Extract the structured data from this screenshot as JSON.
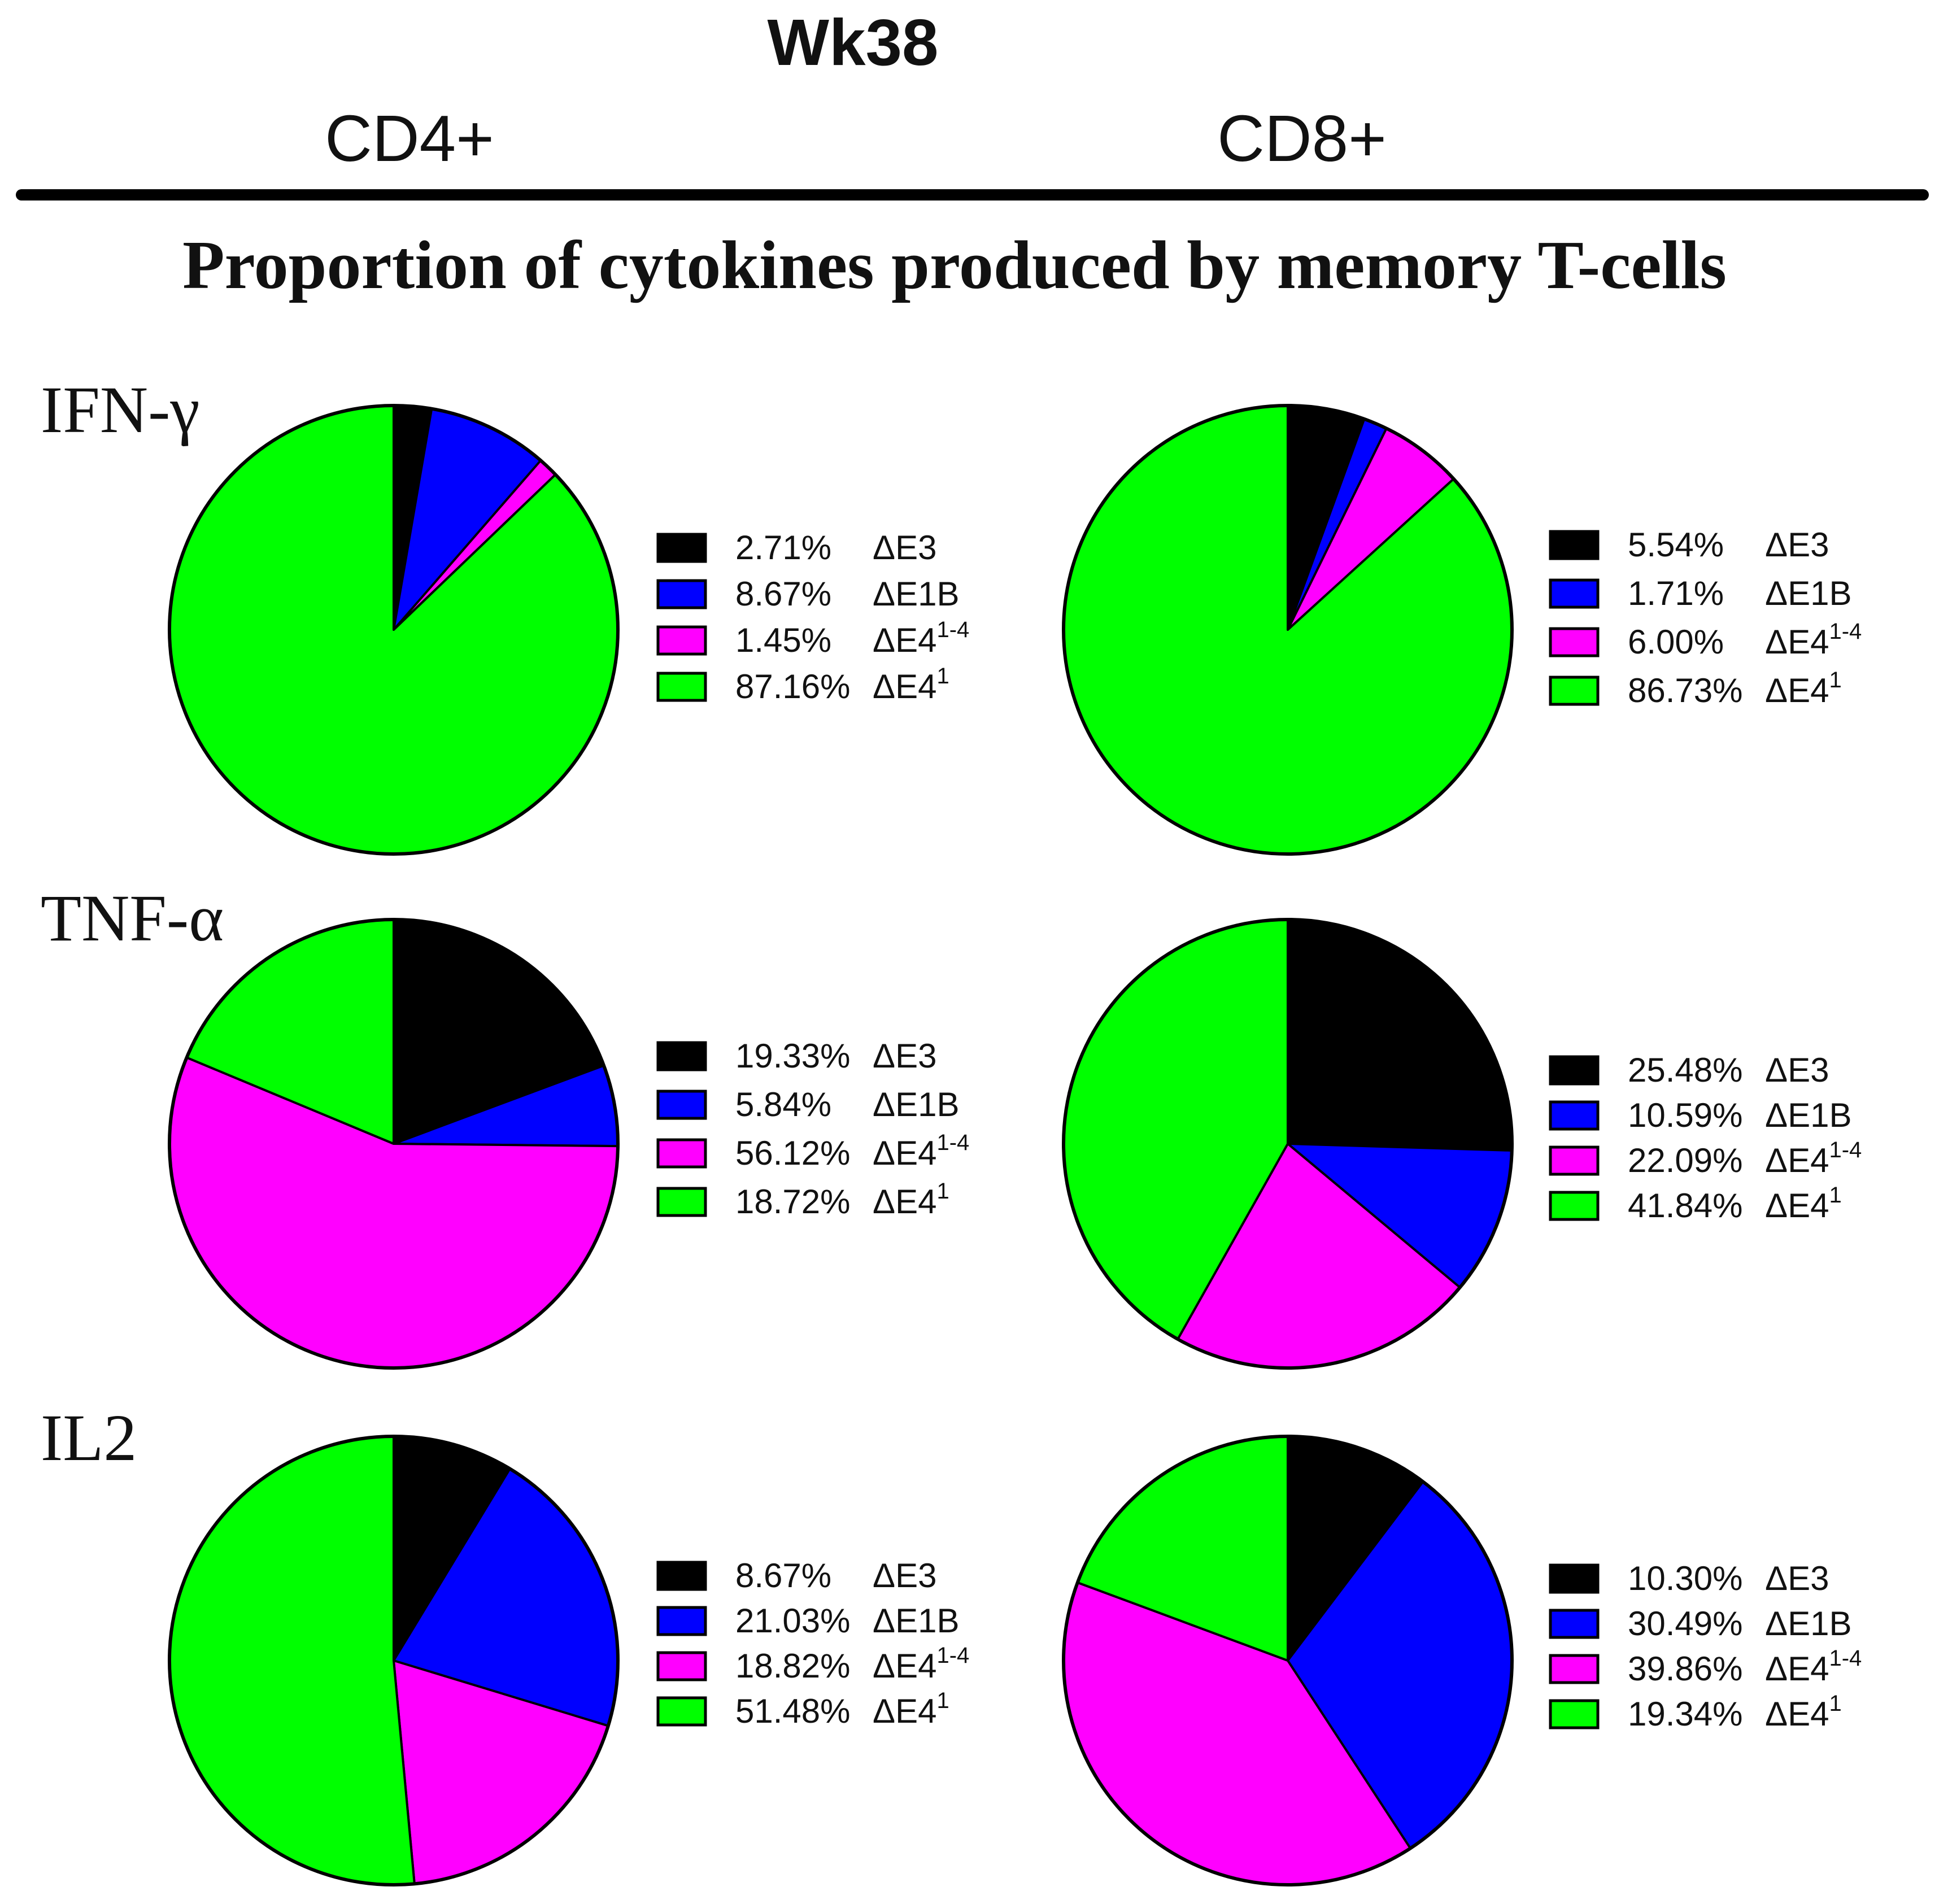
{
  "header": {
    "week": "Wk38",
    "columns": [
      "CD4+",
      "CD8+"
    ],
    "subtitle": "Proportion of cytokines produced by memory T-cells"
  },
  "colors": {
    "ΔE3": "#000000",
    "ΔE1B": "#0000ff",
    "ΔE4 1-4": "#ff00ff",
    "ΔE4 1": "#00ff00"
  },
  "series_labels": [
    {
      "base": "ΔE3",
      "sup": ""
    },
    {
      "base": "ΔE1B",
      "sup": ""
    },
    {
      "base": "ΔE4",
      "sup": "1-4"
    },
    {
      "base": "ΔE4",
      "sup": "1"
    }
  ],
  "chart_data": [
    {
      "type": "pie",
      "cytokine": "IFN-γ",
      "cell": "CD4+",
      "values": [
        2.71,
        8.67,
        1.45,
        87.16
      ],
      "labels": [
        "2.71%",
        "8.67%",
        "1.45%",
        "87.16%"
      ]
    },
    {
      "type": "pie",
      "cytokine": "IFN-γ",
      "cell": "CD8+",
      "values": [
        5.54,
        1.71,
        6.0,
        86.73
      ],
      "labels": [
        "5.54%",
        "1.71%",
        "6.00%",
        "86.73%"
      ]
    },
    {
      "type": "pie",
      "cytokine": "TNF-α",
      "cell": "CD4+",
      "values": [
        19.33,
        5.84,
        56.12,
        18.72
      ],
      "labels": [
        "19.33%",
        "5.84%",
        "56.12%",
        "18.72%"
      ]
    },
    {
      "type": "pie",
      "cytokine": "TNF-α",
      "cell": "CD8+",
      "values": [
        25.48,
        10.59,
        22.09,
        41.84
      ],
      "labels": [
        "25.48%",
        "10.59%",
        "22.09%",
        "41.84%"
      ]
    },
    {
      "type": "pie",
      "cytokine": "IL2",
      "cell": "CD4+",
      "values": [
        8.67,
        21.03,
        18.82,
        51.48
      ],
      "labels": [
        "8.67%",
        "21.03%",
        "18.82%",
        "51.48%"
      ]
    },
    {
      "type": "pie",
      "cytokine": "IL2",
      "cell": "CD8+",
      "values": [
        10.3,
        30.49,
        39.86,
        19.34
      ],
      "labels": [
        "10.30%",
        "30.49%",
        "39.86%",
        "19.34%"
      ]
    }
  ]
}
